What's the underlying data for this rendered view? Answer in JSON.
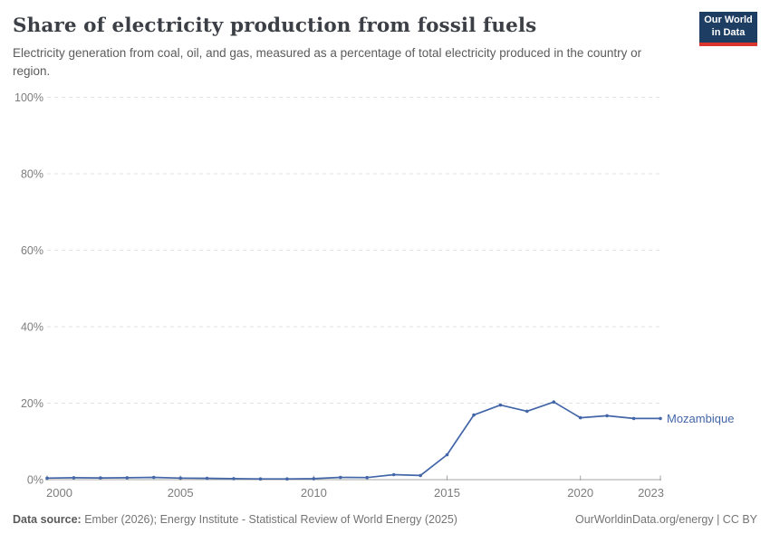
{
  "header": {
    "title": "Share of electricity production from fossil fuels",
    "subtitle": "Electricity generation from coal, oil, and gas, measured as a percentage of total electricity produced in the country or region."
  },
  "logo": {
    "line1": "Our World",
    "line2": "in Data",
    "bg_color": "#1d3d63",
    "accent_color": "#db362e"
  },
  "chart_data": {
    "type": "line",
    "title": "Share of electricity production from fossil fuels",
    "xlabel": "",
    "ylabel": "",
    "x": [
      2000,
      2001,
      2002,
      2003,
      2004,
      2005,
      2006,
      2007,
      2008,
      2009,
      2010,
      2011,
      2012,
      2013,
      2014,
      2015,
      2016,
      2017,
      2018,
      2019,
      2020,
      2021,
      2022,
      2023
    ],
    "series": [
      {
        "name": "Mozambique",
        "color": "#4366a8",
        "values": [
          0.4,
          0.5,
          0.45,
          0.5,
          0.6,
          0.4,
          0.35,
          0.25,
          0.2,
          0.2,
          0.25,
          0.6,
          0.55,
          1.3,
          1.1,
          6.5,
          16.9,
          19.5,
          17.9,
          20.3,
          16.2,
          16.7,
          16.0,
          16.0
        ]
      }
    ],
    "ylim": [
      0,
      100
    ],
    "yticks": [
      0,
      20,
      40,
      60,
      80,
      100
    ],
    "ytick_format": "{}%",
    "xticks": [
      2000,
      2005,
      2010,
      2015,
      2020,
      2023
    ],
    "grid": "horizontal-dashed",
    "legend_position": "right-of-line"
  },
  "colors": {
    "line": "#4366a8",
    "grid": "#e2e2e2",
    "axis": "#a5a5a5",
    "tick_label": "#7d7d7d"
  },
  "footer": {
    "data_source_label": "Data source:",
    "data_source_text": " Ember (2026); Energy Institute - Statistical Review of World Energy (2025)",
    "license_text": "OurWorldinData.org/energy | CC BY"
  }
}
